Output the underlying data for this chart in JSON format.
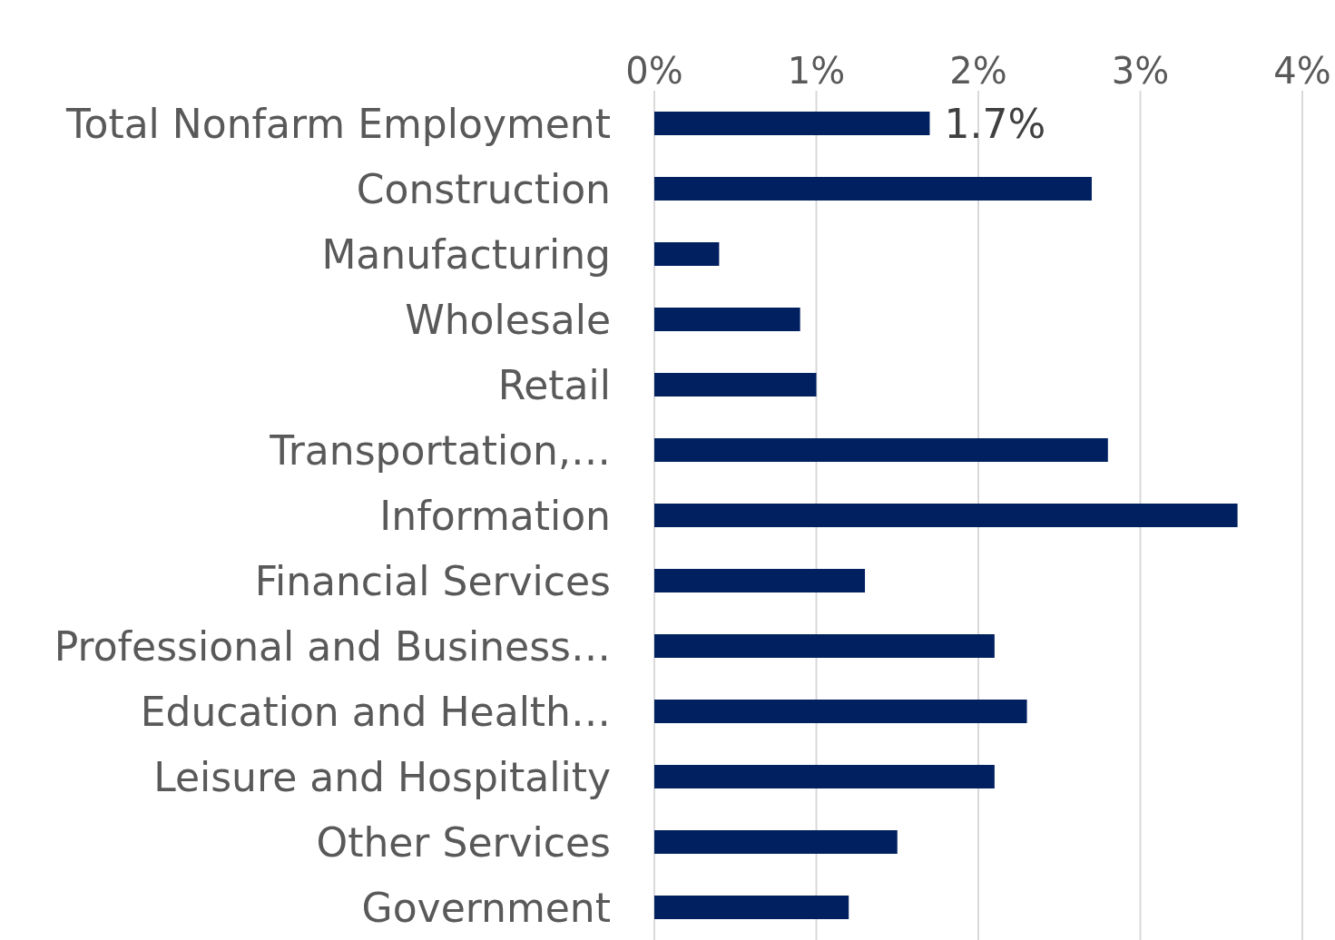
{
  "chart_data": {
    "type": "bar",
    "orientation": "horizontal",
    "categories": [
      "Total Nonfarm Employment",
      "Construction",
      "Manufacturing",
      "Wholesale",
      "Retail",
      "Transportation,…",
      "Information",
      "Financial Services",
      "Professional and Business…",
      "Education and Health…",
      "Leisure and Hospitality",
      "Other Services",
      "Government"
    ],
    "values": [
      1.7,
      2.7,
      0.4,
      0.9,
      1.0,
      2.8,
      3.6,
      1.3,
      2.1,
      2.3,
      2.1,
      1.5,
      1.2
    ],
    "value_labels": [
      "1.7%",
      null,
      null,
      null,
      null,
      null,
      null,
      null,
      null,
      null,
      null,
      null,
      null
    ],
    "color": "#002060",
    "xlim": [
      0,
      4
    ],
    "xticks": [
      {
        "value": 0,
        "label": "0%"
      },
      {
        "value": 1,
        "label": "1%"
      },
      {
        "value": 2,
        "label": "2%"
      },
      {
        "value": 3,
        "label": "3%"
      },
      {
        "value": 4,
        "label": "4%"
      }
    ],
    "grid": "x",
    "legend": false
  }
}
